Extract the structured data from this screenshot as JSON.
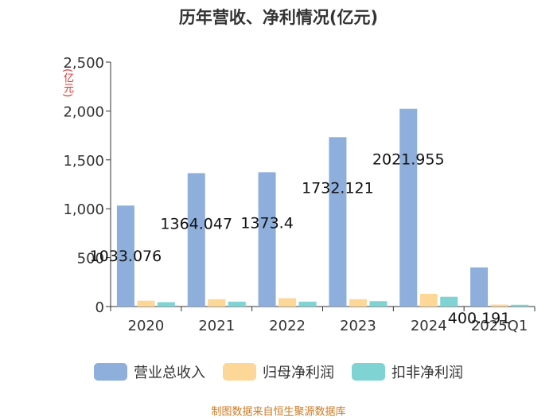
{
  "chart_data": {
    "type": "bar",
    "title": "历年营收、净利情况(亿元)",
    "unit_label": "(亿元)",
    "categories": [
      "2020",
      "2021",
      "2022",
      "2023",
      "2024",
      "2025Q1"
    ],
    "series": [
      {
        "name": "营业总收入",
        "color": "#8eaedb",
        "values": [
          1033.076,
          1364.047,
          1373.4,
          1732.121,
          2021.955,
          400.191
        ]
      },
      {
        "name": "归母净利润",
        "color": "#fcd797",
        "values": [
          60,
          75,
          85,
          75,
          130,
          20
        ]
      },
      {
        "name": "扣非净利润",
        "color": "#7fd3d3",
        "values": [
          45,
          50,
          50,
          55,
          100,
          18
        ]
      }
    ],
    "data_labels": [
      "1033.076",
      "1364.047",
      "1373.4",
      "1732.121",
      "2021.955",
      "400.191"
    ],
    "yticks": [
      "0",
      "500",
      "1,000",
      "1,500",
      "2,000",
      "2,500"
    ],
    "ylim": [
      0,
      2500
    ],
    "legend_position": "bottom",
    "source": "制图数据来自恒生聚源数据库"
  }
}
